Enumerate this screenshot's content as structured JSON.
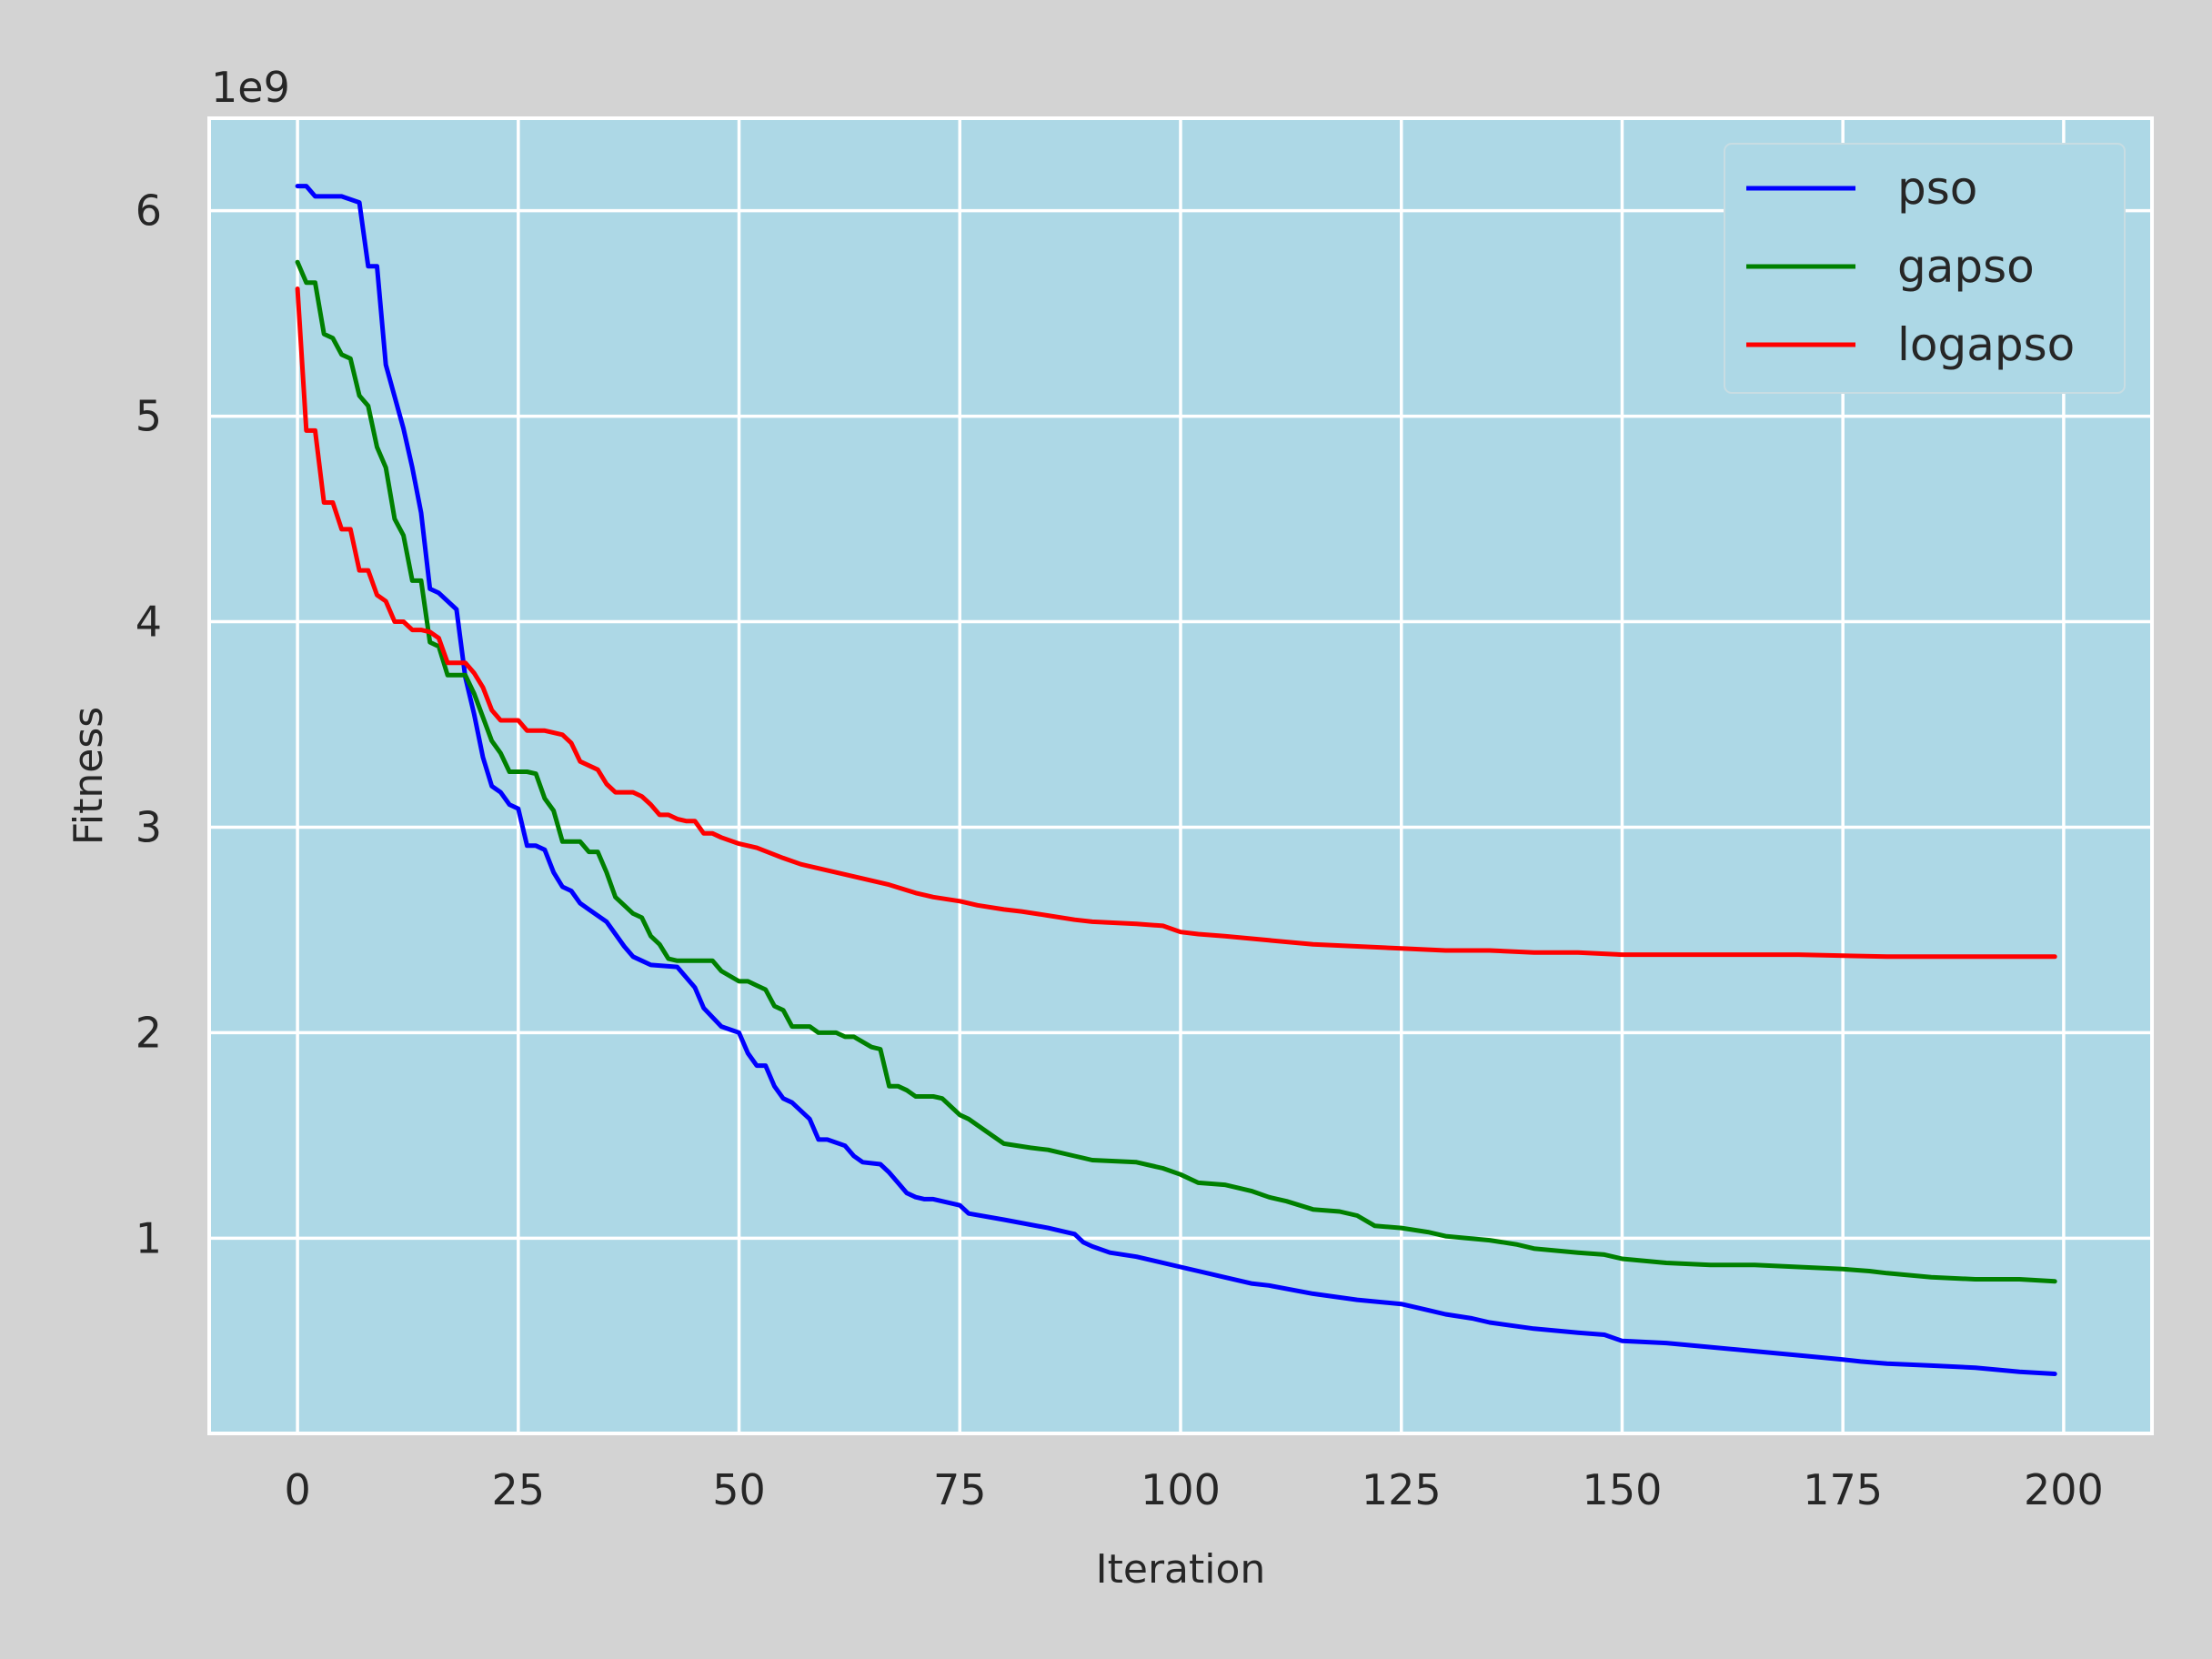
{
  "chart_data": {
    "type": "line",
    "title": "",
    "xlabel": "Iteration",
    "ylabel": "Fitness",
    "y_offset_label": "1e9",
    "xlim": [
      -10,
      210
    ],
    "ylim": [
      0.05,
      6.45
    ],
    "x_ticks": [
      0,
      25,
      50,
      75,
      100,
      125,
      150,
      175,
      200
    ],
    "x_tick_labels": [
      "0",
      "25",
      "50",
      "75",
      "100",
      "125",
      "150",
      "175",
      "200"
    ],
    "y_ticks": [
      1,
      2,
      3,
      4,
      5,
      6
    ],
    "y_tick_labels": [
      "1",
      "2",
      "3",
      "4",
      "5",
      "6"
    ],
    "y_scale_note": "values in units of 1e9",
    "grid": true,
    "legend_position": "top-right",
    "background": "#add8e6",
    "series": [
      {
        "name": "pso",
        "color": "#0000ff",
        "x": [
          0,
          1,
          2,
          5,
          7,
          8,
          9,
          10,
          12,
          13,
          14,
          15,
          16,
          18,
          19,
          20,
          21,
          22,
          23,
          24,
          25,
          26,
          27,
          28,
          29,
          30,
          31,
          32,
          33,
          35,
          37,
          38,
          39,
          40,
          43,
          45,
          46,
          48,
          50,
          51,
          52,
          53,
          54,
          55,
          56,
          58,
          59,
          60,
          62,
          63,
          64,
          66,
          67,
          68,
          69,
          70,
          71,
          72,
          75,
          76,
          80,
          85,
          88,
          89,
          90,
          92,
          95,
          97,
          100,
          102,
          105,
          108,
          110,
          115,
          120,
          125,
          128,
          130,
          133,
          135,
          140,
          145,
          148,
          150,
          155,
          160,
          165,
          170,
          175,
          177,
          180,
          185,
          190,
          195,
          199
        ],
        "y": [
          6.12,
          6.12,
          6.07,
          6.07,
          6.04,
          5.73,
          5.73,
          5.25,
          4.94,
          4.75,
          4.53,
          4.16,
          4.14,
          4.06,
          3.73,
          3.55,
          3.34,
          3.2,
          3.17,
          3.11,
          3.09,
          2.91,
          2.91,
          2.89,
          2.78,
          2.71,
          2.69,
          2.63,
          2.6,
          2.54,
          2.42,
          2.37,
          2.35,
          2.33,
          2.32,
          2.22,
          2.12,
          2.03,
          2.0,
          1.9,
          1.84,
          1.84,
          1.74,
          1.68,
          1.66,
          1.58,
          1.48,
          1.48,
          1.45,
          1.4,
          1.37,
          1.36,
          1.32,
          1.27,
          1.22,
          1.2,
          1.19,
          1.19,
          1.16,
          1.12,
          1.09,
          1.05,
          1.02,
          0.98,
          0.96,
          0.93,
          0.91,
          0.89,
          0.86,
          0.84,
          0.81,
          0.78,
          0.77,
          0.73,
          0.7,
          0.68,
          0.65,
          0.63,
          0.61,
          0.59,
          0.56,
          0.54,
          0.53,
          0.5,
          0.49,
          0.47,
          0.45,
          0.43,
          0.41,
          0.4,
          0.39,
          0.38,
          0.37,
          0.35,
          0.34
        ]
      },
      {
        "name": "gapso",
        "color": "#008000",
        "x": [
          0,
          1,
          2,
          3,
          4,
          5,
          6,
          7,
          8,
          9,
          10,
          11,
          12,
          13,
          14,
          15,
          16,
          17,
          19,
          20,
          22,
          23,
          24,
          25,
          26,
          27,
          28,
          29,
          30,
          31,
          32,
          33,
          34,
          35,
          36,
          38,
          39,
          40,
          41,
          42,
          43,
          44,
          47,
          48,
          50,
          51,
          52,
          53,
          54,
          55,
          56,
          57,
          58,
          59,
          60,
          61,
          62,
          63,
          65,
          66,
          67,
          68,
          69,
          70,
          71,
          72,
          73,
          75,
          76,
          78,
          80,
          83,
          85,
          88,
          90,
          95,
          98,
          100,
          102,
          105,
          108,
          110,
          112,
          115,
          118,
          120,
          122,
          125,
          128,
          130,
          135,
          138,
          140,
          145,
          148,
          150,
          155,
          160,
          165,
          170,
          175,
          178,
          180,
          185,
          190,
          195,
          199
        ],
        "y": [
          5.75,
          5.65,
          5.65,
          5.4,
          5.38,
          5.3,
          5.28,
          5.1,
          5.05,
          4.85,
          4.75,
          4.5,
          4.42,
          4.2,
          4.2,
          3.9,
          3.88,
          3.74,
          3.74,
          3.65,
          3.42,
          3.36,
          3.27,
          3.27,
          3.27,
          3.26,
          3.14,
          3.08,
          2.93,
          2.93,
          2.93,
          2.88,
          2.88,
          2.78,
          2.66,
          2.58,
          2.56,
          2.47,
          2.43,
          2.36,
          2.35,
          2.35,
          2.35,
          2.3,
          2.25,
          2.25,
          2.23,
          2.21,
          2.13,
          2.11,
          2.03,
          2.03,
          2.03,
          2.0,
          2.0,
          2.0,
          1.98,
          1.98,
          1.93,
          1.92,
          1.74,
          1.74,
          1.72,
          1.69,
          1.69,
          1.69,
          1.68,
          1.6,
          1.58,
          1.52,
          1.46,
          1.44,
          1.43,
          1.4,
          1.38,
          1.37,
          1.34,
          1.31,
          1.27,
          1.26,
          1.23,
          1.2,
          1.18,
          1.14,
          1.13,
          1.11,
          1.06,
          1.05,
          1.03,
          1.01,
          0.99,
          0.97,
          0.95,
          0.93,
          0.92,
          0.9,
          0.88,
          0.87,
          0.87,
          0.86,
          0.85,
          0.84,
          0.83,
          0.81,
          0.8,
          0.8,
          0.79
        ]
      },
      {
        "name": "logapso",
        "color": "#ff0000",
        "x": [
          0,
          1,
          2,
          3,
          4,
          5,
          6,
          7,
          8,
          9,
          10,
          11,
          12,
          13,
          14,
          15,
          16,
          17,
          18,
          19,
          20,
          21,
          22,
          23,
          24,
          25,
          26,
          27,
          28,
          29,
          30,
          31,
          32,
          33,
          34,
          35,
          36,
          38,
          39,
          40,
          41,
          42,
          43,
          44,
          45,
          46,
          47,
          48,
          50,
          52,
          55,
          57,
          60,
          62,
          65,
          67,
          70,
          72,
          75,
          77,
          80,
          82,
          85,
          88,
          90,
          95,
          98,
          100,
          102,
          105,
          110,
          115,
          120,
          125,
          130,
          135,
          140,
          145,
          150,
          155,
          160,
          170,
          180,
          190,
          199
        ],
        "y": [
          5.62,
          4.93,
          4.93,
          4.58,
          4.58,
          4.45,
          4.45,
          4.25,
          4.25,
          4.13,
          4.1,
          4.0,
          4.0,
          3.96,
          3.96,
          3.95,
          3.92,
          3.8,
          3.8,
          3.8,
          3.75,
          3.68,
          3.57,
          3.52,
          3.52,
          3.52,
          3.47,
          3.47,
          3.47,
          3.46,
          3.45,
          3.41,
          3.32,
          3.3,
          3.28,
          3.21,
          3.17,
          3.17,
          3.15,
          3.11,
          3.06,
          3.06,
          3.04,
          3.03,
          3.03,
          2.97,
          2.97,
          2.95,
          2.92,
          2.9,
          2.85,
          2.82,
          2.79,
          2.77,
          2.74,
          2.72,
          2.68,
          2.66,
          2.64,
          2.62,
          2.6,
          2.59,
          2.57,
          2.55,
          2.54,
          2.53,
          2.52,
          2.49,
          2.48,
          2.47,
          2.45,
          2.43,
          2.42,
          2.41,
          2.4,
          2.4,
          2.39,
          2.39,
          2.38,
          2.38,
          2.38,
          2.38,
          2.37,
          2.37,
          2.37
        ]
      }
    ]
  }
}
